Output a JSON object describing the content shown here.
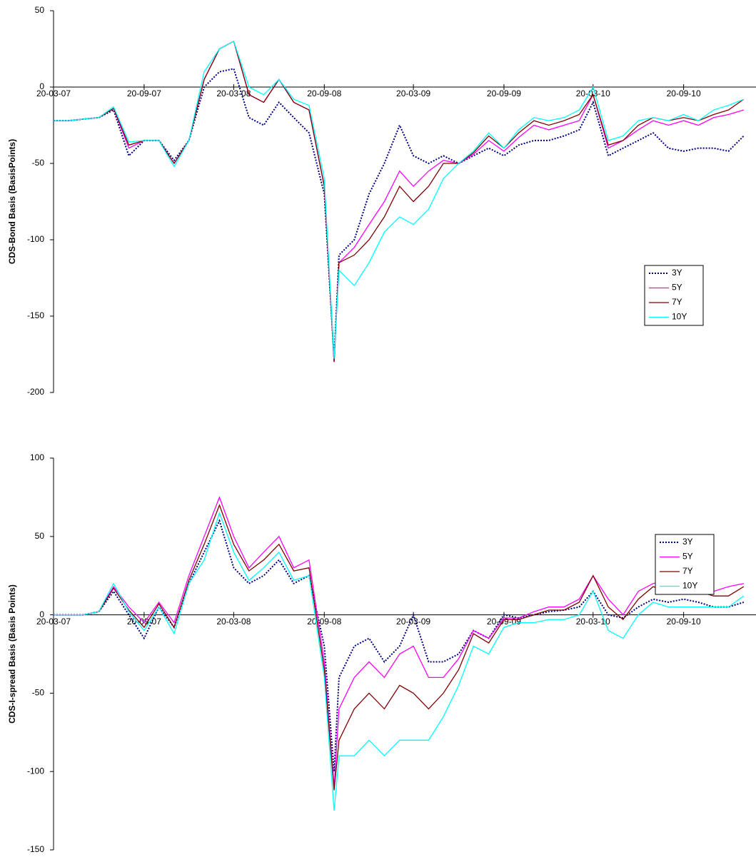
{
  "chart_data": [
    {
      "type": "line",
      "y_label": "CDS-Bond Basis (BasisPoints)",
      "x": [
        "20-03-07",
        "20-04-07",
        "20-05-07",
        "20-06-07",
        "20-07-07",
        "20-08-07",
        "20-09-07",
        "20-10-07",
        "20-11-07",
        "20-12-07",
        "20-01-08",
        "20-02-08",
        "20-03-08",
        "20-04-08",
        "20-05-08",
        "20-06-08",
        "20-07-08",
        "20-08-08",
        "20-09-08",
        "10-10-08",
        "20-10-08",
        "20-11-08",
        "20-12-08",
        "20-01-09",
        "20-02-09",
        "20-03-09",
        "20-04-09",
        "20-05-09",
        "20-06-09",
        "20-07-09",
        "20-08-09",
        "20-09-09",
        "20-10-09",
        "20-11-09",
        "20-12-09",
        "20-01-10",
        "20-02-10",
        "20-03-10",
        "20-04-10",
        "20-05-10",
        "20-06-10",
        "20-07-10",
        "20-08-10",
        "20-09-10",
        "20-10-10",
        "20-11-10",
        "20-12-10",
        "20-01-11"
      ],
      "xlim": [
        "20-03-07",
        "14-02-11"
      ],
      "xticks": [
        "20-03-07",
        "20-09-07",
        "20-03-08",
        "20-09-08",
        "20-03-09",
        "20-09-09",
        "20-03-10",
        "20-09-10"
      ],
      "ylim": [
        -200,
        50
      ],
      "yticks": [
        -200,
        -150,
        -100,
        -50,
        0,
        50
      ],
      "grid": false,
      "legend": "right",
      "series": [
        {
          "name": "3Y",
          "color": "#000080",
          "style": "dotted",
          "values": [
            -22,
            -22,
            -21,
            -20,
            -15,
            -45,
            -35,
            -35,
            -48,
            -35,
            0,
            10,
            12,
            -20,
            -25,
            -10,
            -20,
            -30,
            -70,
            -178,
            -110,
            -100,
            -70,
            -50,
            -25,
            -45,
            -50,
            -45,
            -50,
            -45,
            -40,
            -45,
            -38,
            -35,
            -35,
            -32,
            -28,
            -10,
            -45,
            -40,
            -35,
            -30,
            -40,
            -42,
            -40,
            -40,
            -42,
            -32
          ]
        },
        {
          "name": "5Y",
          "color": "#ff00ff",
          "style": "solid",
          "values": [
            -22,
            -22,
            -21,
            -20,
            -14,
            -40,
            -35,
            -35,
            -50,
            -35,
            5,
            25,
            30,
            -5,
            -10,
            5,
            -10,
            -15,
            -65,
            -180,
            -115,
            -105,
            -90,
            -75,
            -55,
            -65,
            -55,
            -48,
            -50,
            -44,
            -35,
            -42,
            -33,
            -25,
            -28,
            -25,
            -22,
            -5,
            -40,
            -35,
            -28,
            -22,
            -25,
            -22,
            -25,
            -20,
            -18,
            -15
          ]
        },
        {
          "name": "7Y",
          "color": "#800000",
          "style": "solid",
          "values": [
            -22,
            -22,
            -21,
            -20,
            -14,
            -38,
            -35,
            -35,
            -50,
            -35,
            5,
            25,
            30,
            -5,
            -10,
            5,
            -10,
            -15,
            -65,
            -180,
            -115,
            -110,
            -100,
            -85,
            -65,
            -75,
            -65,
            -50,
            -50,
            -43,
            -32,
            -40,
            -30,
            -22,
            -25,
            -22,
            -18,
            -5,
            -38,
            -35,
            -25,
            -20,
            -22,
            -20,
            -22,
            -18,
            -15,
            -8
          ]
        },
        {
          "name": "10Y",
          "color": "#00ffff",
          "style": "solid",
          "values": [
            -22,
            -22,
            -21,
            -20,
            -13,
            -36,
            -35,
            -35,
            -52,
            -35,
            10,
            25,
            30,
            0,
            -5,
            5,
            -8,
            -12,
            -60,
            -178,
            -120,
            -130,
            -115,
            -95,
            -85,
            -90,
            -80,
            -60,
            -50,
            -42,
            -30,
            -40,
            -28,
            -20,
            -22,
            -20,
            -15,
            0,
            -35,
            -32,
            -22,
            -20,
            -22,
            -18,
            -22,
            -15,
            -12,
            -8
          ]
        }
      ]
    },
    {
      "type": "line",
      "y_label": "CDS-I-spread Basis (Basis Points)",
      "x": [
        "20-03-07",
        "20-04-07",
        "20-05-07",
        "20-06-07",
        "20-07-07",
        "20-08-07",
        "20-09-07",
        "20-10-07",
        "20-11-07",
        "20-12-07",
        "20-01-08",
        "20-02-08",
        "20-03-08",
        "20-04-08",
        "20-05-08",
        "20-06-08",
        "20-07-08",
        "20-08-08",
        "20-09-08",
        "10-10-08",
        "20-10-08",
        "20-11-08",
        "20-12-08",
        "20-01-09",
        "20-02-09",
        "20-03-09",
        "20-04-09",
        "20-05-09",
        "20-06-09",
        "20-07-09",
        "20-08-09",
        "20-09-09",
        "20-10-09",
        "20-11-09",
        "20-12-09",
        "20-01-10",
        "20-02-10",
        "20-03-10",
        "20-04-10",
        "20-05-10",
        "20-06-10",
        "20-07-10",
        "20-08-10",
        "20-09-10",
        "20-10-10",
        "20-11-10",
        "20-12-10",
        "20-01-11"
      ],
      "xlim": [
        "20-03-07",
        "14-02-11"
      ],
      "xticks": [
        "20-03-07",
        "20-09-07",
        "20-03-08",
        "20-09-08",
        "20-03-09",
        "20-09-09",
        "20-03-10",
        "20-09-10"
      ],
      "ylim": [
        -150,
        100
      ],
      "yticks": [
        -150,
        -100,
        -50,
        0,
        50,
        100
      ],
      "grid": false,
      "legend": "right",
      "series": [
        {
          "name": "3Y",
          "color": "#000080",
          "style": "dotted",
          "values": [
            0,
            0,
            0,
            2,
            15,
            0,
            -15,
            5,
            -8,
            20,
            40,
            60,
            30,
            20,
            25,
            35,
            20,
            25,
            -20,
            -100,
            -40,
            -20,
            -15,
            -30,
            -20,
            0,
            -30,
            -30,
            -25,
            -10,
            -15,
            0,
            -2,
            0,
            2,
            3,
            5,
            15,
            0,
            -2,
            5,
            10,
            8,
            10,
            8,
            5,
            5,
            8
          ]
        },
        {
          "name": "5Y",
          "color": "#ff00ff",
          "style": "solid",
          "values": [
            0,
            0,
            0,
            2,
            18,
            5,
            -5,
            8,
            -5,
            25,
            50,
            75,
            50,
            30,
            40,
            50,
            30,
            35,
            -30,
            -110,
            -60,
            -40,
            -30,
            -40,
            -25,
            -20,
            -40,
            -40,
            -28,
            -10,
            -15,
            -2,
            -2,
            2,
            5,
            5,
            10,
            25,
            10,
            0,
            15,
            20,
            22,
            18,
            18,
            15,
            18,
            20
          ]
        },
        {
          "name": "7Y",
          "color": "#800000",
          "style": "solid",
          "values": [
            0,
            0,
            0,
            2,
            17,
            3,
            -8,
            7,
            -8,
            22,
            45,
            70,
            45,
            28,
            35,
            45,
            28,
            30,
            -35,
            -112,
            -80,
            -60,
            -50,
            -60,
            -45,
            -50,
            -60,
            -50,
            -35,
            -12,
            -18,
            -3,
            -3,
            0,
            3,
            3,
            8,
            25,
            5,
            -3,
            10,
            18,
            15,
            15,
            15,
            12,
            12,
            18
          ]
        },
        {
          "name": "10Y",
          "color": "#00ffff",
          "style": "solid",
          "values": [
            0,
            0,
            0,
            2,
            20,
            2,
            -10,
            5,
            -12,
            20,
            35,
            65,
            40,
            22,
            30,
            40,
            22,
            25,
            -40,
            -125,
            -90,
            -90,
            -80,
            -90,
            -80,
            -80,
            -80,
            -65,
            -45,
            -20,
            -25,
            -8,
            -5,
            -5,
            -3,
            -3,
            0,
            15,
            -10,
            -15,
            0,
            8,
            5,
            5,
            5,
            5,
            5,
            12
          ]
        }
      ]
    }
  ]
}
